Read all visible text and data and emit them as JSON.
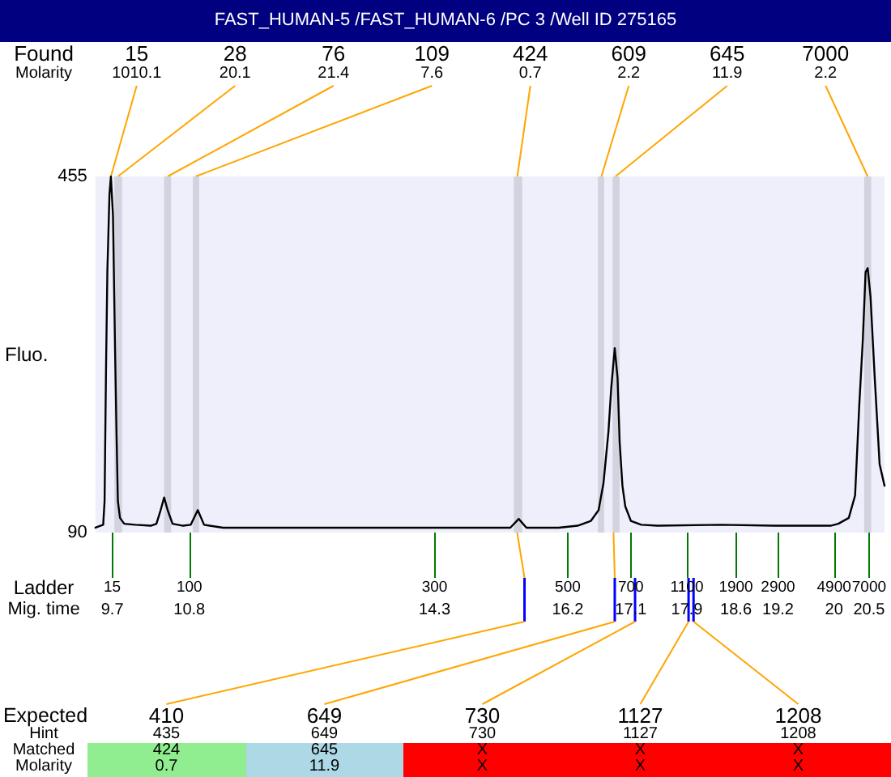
{
  "chart_data": {
    "type": "line",
    "title": "FAST_HUMAN-5 /FAST_HUMAN-6 /PC 3 /Well ID 275165",
    "xlabel": "Mig. time",
    "ylabel": "Fluo.",
    "x": [
      9.46,
      9.57,
      9.59,
      9.61,
      9.63,
      9.66,
      9.68,
      9.71,
      9.74,
      9.76,
      9.78,
      9.81,
      9.87,
      10.03,
      10.25,
      10.33,
      10.39,
      10.44,
      10.49,
      10.56,
      10.71,
      10.82,
      10.92,
      11.01,
      11.28,
      12.76,
      14.36,
      15.38,
      15.5,
      15.61,
      16.07,
      16.34,
      16.53,
      16.64,
      16.71,
      16.78,
      16.82,
      16.87,
      16.91,
      16.94,
      16.98,
      17.02,
      17.1,
      17.25,
      17.48,
      18.39,
      19.15,
      19.95,
      20.06,
      20.21,
      20.3,
      20.36,
      20.41,
      20.45,
      20.48,
      20.52,
      20.58,
      20.65,
      20.72
    ],
    "values": [
      95,
      98,
      122,
      254,
      359,
      437,
      455,
      415,
      276,
      193,
      122,
      105,
      99,
      98,
      97,
      99,
      113,
      126,
      113,
      99,
      97,
      98,
      113,
      98,
      95,
      95,
      95,
      95,
      104,
      95,
      95,
      97,
      102,
      113,
      141,
      193,
      238,
      279,
      249,
      183,
      138,
      117,
      102,
      98,
      97,
      98,
      97,
      97,
      99,
      105,
      128,
      221,
      287,
      357,
      361,
      332,
      249,
      160,
      138
    ],
    "color": "#000000",
    "marker": "none",
    "xlim": [
      9.46,
      20.72
    ],
    "xticks": [
      9.7,
      10.8,
      14.3,
      16.2,
      17.1,
      17.9,
      18.6,
      19.2,
      20,
      20.5
    ],
    "ylim": [
      90,
      455
    ],
    "yticks": [
      90,
      455
    ],
    "bands": [
      {
        "axis": "x",
        "from": 9.73,
        "to": 9.84,
        "color": "#d3d3df"
      },
      {
        "axis": "x",
        "from": 10.44,
        "to": 10.54,
        "color": "#d3d3df"
      },
      {
        "axis": "x",
        "from": 10.85,
        "to": 10.94,
        "color": "#d3d3df"
      },
      {
        "axis": "x",
        "from": 15.43,
        "to": 15.55,
        "color": "#d3d3df"
      },
      {
        "axis": "x",
        "from": 16.63,
        "to": 16.72,
        "color": "#d3d3df"
      },
      {
        "axis": "x",
        "from": 16.84,
        "to": 16.94,
        "color": "#d3d3df"
      },
      {
        "axis": "x",
        "from": 20.43,
        "to": 20.53,
        "color": "#d3d3df"
      }
    ],
    "annotations": [
      "Found",
      {
        "text": "15",
        "x": 9.68,
        "y": 455
      },
      {
        "text": "28",
        "x": 9.78,
        "y": 455
      },
      {
        "text": "76",
        "x": 10.49,
        "y": 455
      },
      {
        "text": "109",
        "x": 10.89,
        "y": 455
      },
      {
        "text": "424",
        "x": 15.48,
        "y": 455
      },
      {
        "text": "609",
        "x": 16.68,
        "y": 455
      },
      {
        "text": "645",
        "x": 16.88,
        "y": 455
      },
      {
        "text": "7000",
        "x": 20.48,
        "y": 455
      },
      "Molarity",
      "1010.1",
      "20.1",
      "21.4",
      "7.6",
      "0.7",
      "2.2",
      "11.9",
      "2.2",
      "Ladder",
      "15",
      "100",
      "300",
      "500",
      "700",
      "1100",
      "1900",
      "2900",
      "4900",
      "7000",
      "Expected",
      "410",
      "649",
      "730",
      "1127",
      "1208",
      "Hint",
      "435",
      "649",
      "730",
      "1127",
      "1208",
      "Matched",
      "424",
      "645",
      "X",
      "X",
      "X",
      "Molarity",
      "0.7",
      "11.9",
      "X",
      "X",
      "X"
    ]
  }
}
